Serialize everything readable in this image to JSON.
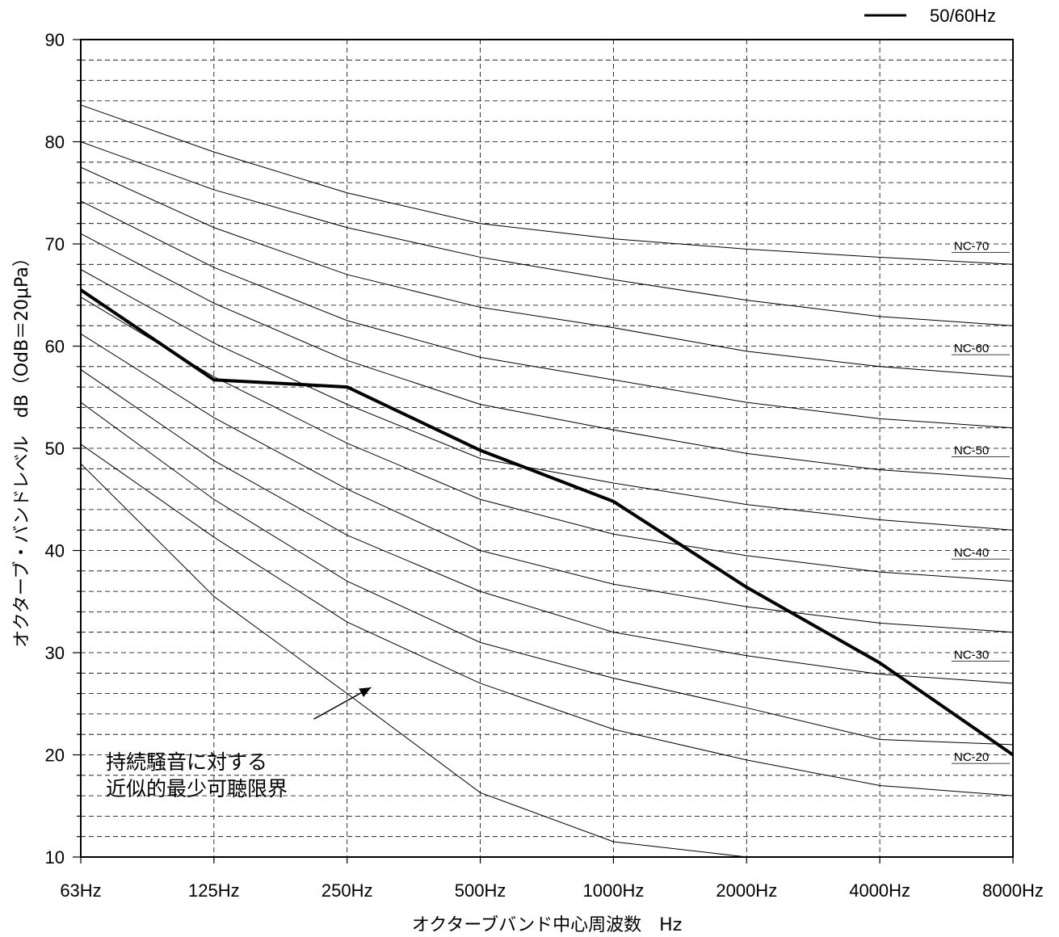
{
  "chart_data": {
    "type": "line",
    "xlabel": "オクターブバンド中心周波数　Hz",
    "ylabel": "オクターブ・バンドレベル　dB（OdB＝20μPa）",
    "categories": [
      "63Hz",
      "125Hz",
      "250Hz",
      "500Hz",
      "1000Hz",
      "2000Hz",
      "4000Hz",
      "8000Hz"
    ],
    "ylim": [
      10,
      90
    ],
    "yticks": [
      10,
      20,
      30,
      40,
      50,
      60,
      70,
      80,
      90
    ],
    "grid": true,
    "legend_position": "top-right",
    "series": [
      {
        "name": "50/60Hz",
        "values": [
          65.5,
          56.7,
          56.0,
          49.8,
          44.8,
          36.4,
          29.0,
          20.0
        ]
      }
    ],
    "nc_curves": [
      {
        "label": "NC-70",
        "values": [
          83.6,
          79.0,
          75.0,
          72.0,
          70.5,
          69.5,
          68.7,
          68.0
        ]
      },
      {
        "label": "",
        "values": [
          80.0,
          75.3,
          71.6,
          68.7,
          66.5,
          64.5,
          62.9,
          62.0
        ]
      },
      {
        "label": "",
        "values": [
          77.5,
          71.6,
          67.0,
          63.8,
          61.8,
          59.5,
          58.0,
          57.0
        ]
      },
      {
        "label": "NC-60",
        "values": [
          74.2,
          67.7,
          62.5,
          58.9,
          56.7,
          54.5,
          52.9,
          52.0
        ]
      },
      {
        "label": "",
        "values": [
          71.0,
          64.2,
          58.6,
          54.3,
          51.8,
          49.5,
          47.9,
          47.0
        ]
      },
      {
        "label": "",
        "values": [
          67.5,
          60.3,
          54.3,
          49.0,
          46.6,
          44.5,
          43.0,
          42.0
        ]
      },
      {
        "label": "NC-50",
        "values": [
          64.8,
          57.0,
          50.5,
          45.0,
          41.6,
          39.5,
          37.9,
          37.0
        ]
      },
      {
        "label": "",
        "values": [
          61.2,
          53.0,
          46.0,
          40.0,
          36.7,
          34.5,
          32.9,
          32.0
        ]
      },
      {
        "label": "NC-40",
        "values": [
          57.7,
          48.8,
          41.5,
          36.0,
          32.0,
          29.7,
          27.9,
          27.0
        ]
      },
      {
        "label": "",
        "values": [
          54.5,
          45.0,
          37.0,
          31.0,
          27.5,
          24.6,
          21.5,
          21.0
        ]
      },
      {
        "label": "NC-30",
        "values": [
          50.4,
          41.3,
          33.0,
          27.0,
          22.5,
          19.5,
          17.0,
          16.0
        ]
      },
      {
        "label": "",
        "values": [
          48.5,
          35.5,
          26.0,
          16.3,
          11.5,
          10.0
        ]
      },
      {
        "label": "NC-20",
        "values": []
      }
    ],
    "annotation": {
      "lines": [
        "持続騒音に対する",
        "近似的最少可聴限界"
      ],
      "arrow_tail": [
        1.75,
        23.5
      ],
      "arrow_head": [
        2.18,
        26.6
      ]
    }
  }
}
